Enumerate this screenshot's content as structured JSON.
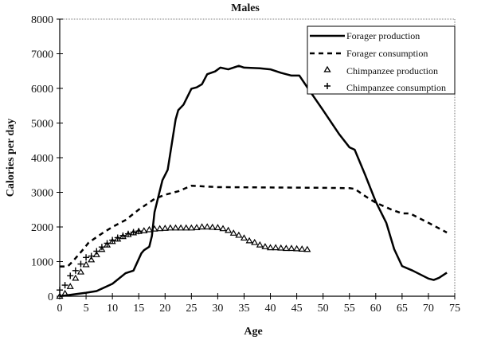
{
  "chart_data": {
    "type": "line",
    "title": "Males",
    "xlabel": "Age",
    "ylabel": "Calories per day",
    "xlim": [
      0,
      75
    ],
    "ylim": [
      0,
      8000
    ],
    "xticks": [
      "0",
      "5",
      "10",
      "15",
      "20",
      "25",
      "30",
      "35",
      "40",
      "45",
      "50",
      "55",
      "60",
      "65",
      "70",
      "75"
    ],
    "yticks": [
      "0",
      "1000",
      "2000",
      "3000",
      "4000",
      "5000",
      "6000",
      "7000",
      "8000"
    ],
    "grid": false,
    "legend_position": "top-right",
    "series": [
      {
        "name": "Forager production",
        "style": "solid",
        "color": "#000000",
        "x": [
          0,
          5,
          7,
          10,
          12.5,
          14,
          15.5,
          16,
          17,
          17.5,
          18,
          19.5,
          20.5,
          22,
          22.5,
          23.5,
          25,
          26,
          27,
          28,
          29.5,
          30.5,
          32,
          34,
          35,
          38,
          40,
          42,
          44,
          45.5,
          47,
          50,
          53,
          55,
          56,
          58,
          60,
          62,
          63.5,
          65,
          67,
          70,
          71,
          72,
          73.5
        ],
        "y": [
          0,
          100,
          150,
          360,
          665,
          740,
          1240,
          1330,
          1430,
          1740,
          2430,
          3350,
          3650,
          5100,
          5370,
          5530,
          5990,
          6030,
          6120,
          6410,
          6490,
          6600,
          6550,
          6650,
          6600,
          6580,
          6550,
          6450,
          6370,
          6370,
          6030,
          5370,
          4690,
          4300,
          4230,
          3500,
          2730,
          2120,
          1360,
          870,
          740,
          510,
          470,
          530,
          680
        ]
      },
      {
        "name": "Forager consumption",
        "style": "dashed",
        "color": "#000000",
        "x": [
          0,
          1.5,
          2.5,
          4.5,
          5.5,
          8,
          10,
          12.5,
          15,
          18,
          20,
          22.5,
          25,
          30,
          40,
          50,
          55,
          56,
          58,
          60,
          63,
          65,
          66.5,
          70,
          73.5
        ],
        "y": [
          860,
          860,
          1010,
          1360,
          1550,
          1810,
          2000,
          2200,
          2500,
          2810,
          2930,
          3030,
          3190,
          3150,
          3140,
          3130,
          3120,
          3100,
          2890,
          2700,
          2500,
          2390,
          2390,
          2120,
          1840
        ]
      },
      {
        "name": "Chimpanzee production",
        "style": "triangle",
        "color": "#000000",
        "x": [
          0,
          1,
          2,
          3,
          4,
          5,
          6,
          7,
          8,
          9,
          10,
          11,
          12,
          13,
          14,
          15,
          16,
          17,
          18,
          19,
          20,
          21,
          22,
          23,
          24,
          25,
          26,
          27,
          28,
          29,
          30,
          31,
          32,
          33,
          34,
          35,
          36,
          37,
          38,
          39,
          40,
          41,
          42,
          43,
          44,
          45,
          46,
          47
        ],
        "y": [
          0,
          80,
          280,
          520,
          700,
          910,
          1050,
          1200,
          1350,
          1480,
          1580,
          1650,
          1720,
          1780,
          1830,
          1870,
          1890,
          1920,
          1940,
          1950,
          1960,
          1970,
          1970,
          1970,
          1970,
          1970,
          1980,
          2000,
          2000,
          1990,
          1980,
          1950,
          1900,
          1820,
          1760,
          1680,
          1600,
          1550,
          1480,
          1430,
          1400,
          1400,
          1390,
          1380,
          1380,
          1370,
          1360,
          1350
        ]
      },
      {
        "name": "Chimpanzee consumption",
        "style": "plus",
        "color": "#000000",
        "x": [
          0,
          1,
          2,
          3,
          4,
          5,
          6,
          7,
          8,
          9,
          10,
          11,
          12,
          13,
          14,
          15
        ],
        "y": [
          180,
          320,
          590,
          740,
          930,
          1120,
          1160,
          1300,
          1420,
          1530,
          1620,
          1690,
          1750,
          1800,
          1850,
          1880
        ]
      }
    ]
  }
}
